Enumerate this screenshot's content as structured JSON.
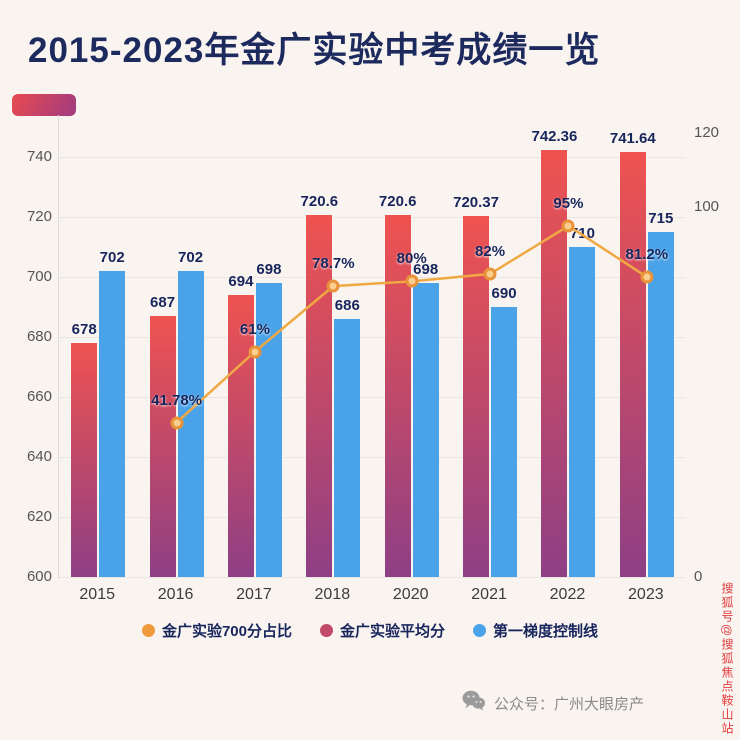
{
  "title": "2015-2023年金广实验中考成绩一览",
  "chart_data": {
    "type": "bar",
    "categories": [
      "2015",
      "2016",
      "2017",
      "2018",
      "2020",
      "2021",
      "2022",
      "2023"
    ],
    "series": [
      {
        "name": "金广实验平均分",
        "type": "bar",
        "axis": "left",
        "color": "#c04a68",
        "values": [
          678,
          687,
          694,
          720.6,
          720.6,
          720.37,
          742.36,
          741.64
        ],
        "labels": [
          "678",
          "687",
          "694",
          "720.6",
          "720.6",
          "720.37",
          "742.36",
          "741.64"
        ]
      },
      {
        "name": "第一梯度控制线",
        "type": "bar",
        "axis": "left",
        "color": "#4aa3e8",
        "values": [
          702,
          702,
          698,
          686,
          698,
          690,
          710,
          715
        ],
        "labels": [
          "702",
          "702",
          "698",
          "686",
          "698",
          "690",
          "710",
          "715"
        ]
      },
      {
        "name": "金广实验700分占比",
        "type": "line",
        "axis": "right",
        "color": "#f0a843",
        "values": [
          null,
          41.78,
          61,
          78.7,
          80,
          82,
          95,
          81.2
        ],
        "labels": [
          "",
          "41.78%",
          "61%",
          "78.7%",
          "80%",
          "82%",
          "95%",
          "81.2%"
        ]
      }
    ],
    "left_axis": {
      "min": 600,
      "max": 754,
      "ticks": [
        600,
        620,
        640,
        660,
        680,
        700,
        720,
        740
      ]
    },
    "right_axis": {
      "min": 0,
      "max": 125,
      "ticks": [
        0,
        100,
        120
      ]
    },
    "grid": true,
    "legend_position": "bottom"
  },
  "legend": [
    {
      "label": "金广实验700分占比",
      "color": "#f09a3e"
    },
    {
      "label": "金广实验平均分",
      "color": "#c04a68"
    },
    {
      "label": "第一梯度控制线",
      "color": "#4aa3e8"
    }
  ],
  "footer": {
    "text": "公众号：广州大眼房产",
    "icon": "wechat-icon"
  },
  "watermark": "搜狐号@搜狐焦点鞍山站",
  "colors": {
    "title": "#1c2a5e",
    "bar_gradient_top": "#ef5350",
    "bar_gradient_bottom": "#8e3f85",
    "line": "#f0a843",
    "label": "#17255c",
    "background": "#faf4f0"
  }
}
